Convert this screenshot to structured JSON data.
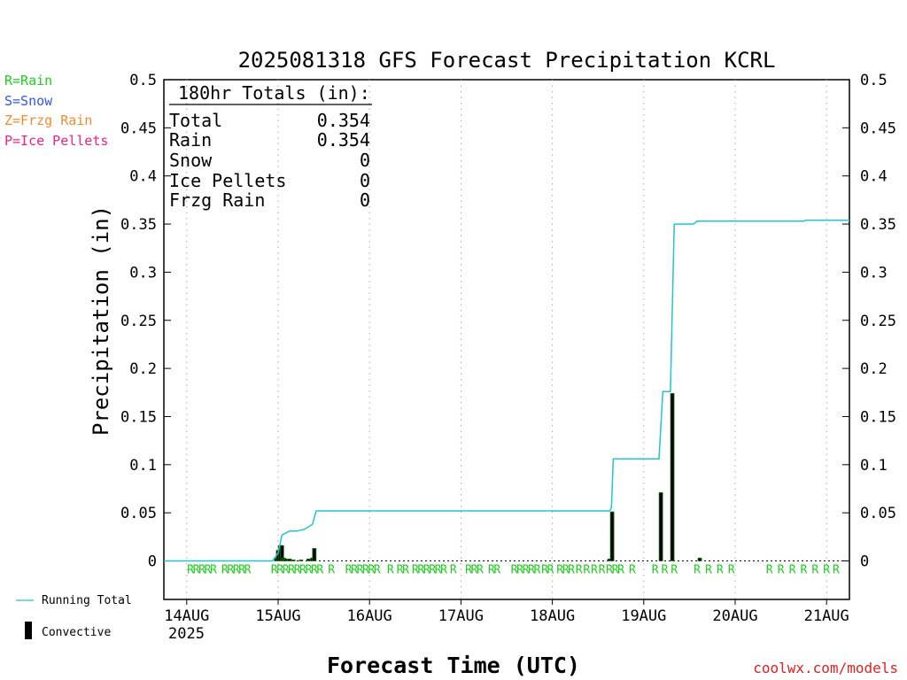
{
  "page": {
    "title": "2025081318 GFS Forecast Precipitation KCRL",
    "ylabel": "Precipitation (in)",
    "xlabel": "Forecast Time (UTC)",
    "credit": "coolwx.com/models",
    "year_label": "2025"
  },
  "type_legend": [
    {
      "text": "R=Rain",
      "color": "#22cc22"
    },
    {
      "text": "S=Snow",
      "color": "#3355ee"
    },
    {
      "text": "Z=Frzg Rain",
      "color": "#f08c30"
    },
    {
      "text": "P=Ice Pellets",
      "color": "#ee2288"
    }
  ],
  "series_legend": {
    "running_total": {
      "label": "Running Total",
      "color": "#22c5d0"
    },
    "convective": {
      "label": "Convective",
      "color": "#000000"
    }
  },
  "totals": {
    "header": "180hr Totals (in):",
    "rows": [
      {
        "label": "Total",
        "value": "0.354"
      },
      {
        "label": "Rain",
        "value": "0.354"
      },
      {
        "label": "Snow",
        "value": "0"
      },
      {
        "label": "Ice Pellets",
        "value": "0"
      },
      {
        "label": "Frzg Rain",
        "value": "0"
      }
    ]
  },
  "chart_data": {
    "type": "bar",
    "title": "2025081318 GFS Forecast Precipitation KCRL",
    "xlabel": "Forecast Time (UTC)",
    "ylabel": "Precipitation (in)",
    "x_unit": "forecast hour",
    "xlim": [
      0,
      180
    ],
    "ylim": [
      -0.04,
      0.5
    ],
    "yticks": [
      0,
      0.05,
      0.1,
      0.15,
      0.2,
      0.25,
      0.3,
      0.35,
      0.4,
      0.45,
      0.5
    ],
    "y_tick_labels": [
      "0",
      "0.05",
      "0.1",
      "0.15",
      "0.2",
      "0.25",
      "0.3",
      "0.35",
      "0.4",
      "0.45",
      "0.5"
    ],
    "x_ticks": [
      {
        "hour": 6,
        "label": "14AUG"
      },
      {
        "hour": 30,
        "label": "15AUG"
      },
      {
        "hour": 54,
        "label": "16AUG"
      },
      {
        "hour": 78,
        "label": "17AUG"
      },
      {
        "hour": 102,
        "label": "18AUG"
      },
      {
        "hour": 126,
        "label": "19AUG"
      },
      {
        "hour": 150,
        "label": "20AUG"
      },
      {
        "hour": 174,
        "label": "21AUG"
      }
    ],
    "grid": "vertical dotted at day boundaries",
    "legend": "left-bottom",
    "running_total": [
      [
        0,
        0
      ],
      [
        28.5,
        0
      ],
      [
        30,
        0.008
      ],
      [
        31,
        0.027
      ],
      [
        33,
        0.031
      ],
      [
        35,
        0.031
      ],
      [
        37,
        0.033
      ],
      [
        39,
        0.038
      ],
      [
        40,
        0.052
      ],
      [
        117,
        0.052
      ],
      [
        117.5,
        0.055
      ],
      [
        118,
        0.106
      ],
      [
        130,
        0.106
      ],
      [
        131,
        0.176
      ],
      [
        133,
        0.176
      ],
      [
        134,
        0.35
      ],
      [
        139,
        0.35
      ],
      [
        140,
        0.353
      ],
      [
        168,
        0.353
      ],
      [
        168.5,
        0.354
      ],
      [
        180,
        0.354
      ]
    ],
    "bars": [
      [
        29.5,
        0.003
      ],
      [
        30,
        0.011
      ],
      [
        30.5,
        0.016
      ],
      [
        31,
        0.016
      ],
      [
        31.5,
        0.003
      ],
      [
        32,
        0.002
      ],
      [
        33,
        0.002
      ],
      [
        34,
        0.001
      ],
      [
        36,
        0.001
      ],
      [
        38,
        0.002
      ],
      [
        39,
        0.003
      ],
      [
        39.5,
        0.013
      ],
      [
        117,
        0.002
      ],
      [
        117.7,
        0.051
      ],
      [
        130.5,
        0.071
      ],
      [
        133.5,
        0.174
      ],
      [
        140.7,
        0.003
      ]
    ],
    "precip_type_markers": {
      "symbol": "R",
      "hours": [
        7,
        8.5,
        10,
        11.5,
        13,
        16,
        17.5,
        19,
        20.5,
        22,
        29,
        30.5,
        32,
        33.5,
        35,
        36.5,
        38,
        39.5,
        41,
        44,
        48.5,
        50,
        51.5,
        53,
        54.5,
        56,
        59.5,
        62,
        63.5,
        66,
        67.5,
        69,
        70.5,
        72,
        73.5,
        76,
        80,
        81.5,
        83,
        86,
        87.5,
        92,
        93.5,
        95,
        96.5,
        98,
        100,
        101.5,
        104,
        105.5,
        107,
        109,
        111,
        113,
        115,
        117,
        118.5,
        120,
        123,
        129,
        131.5,
        134,
        140,
        143,
        146,
        149,
        159,
        162,
        165,
        168,
        171,
        174,
        176.5
      ]
    }
  }
}
